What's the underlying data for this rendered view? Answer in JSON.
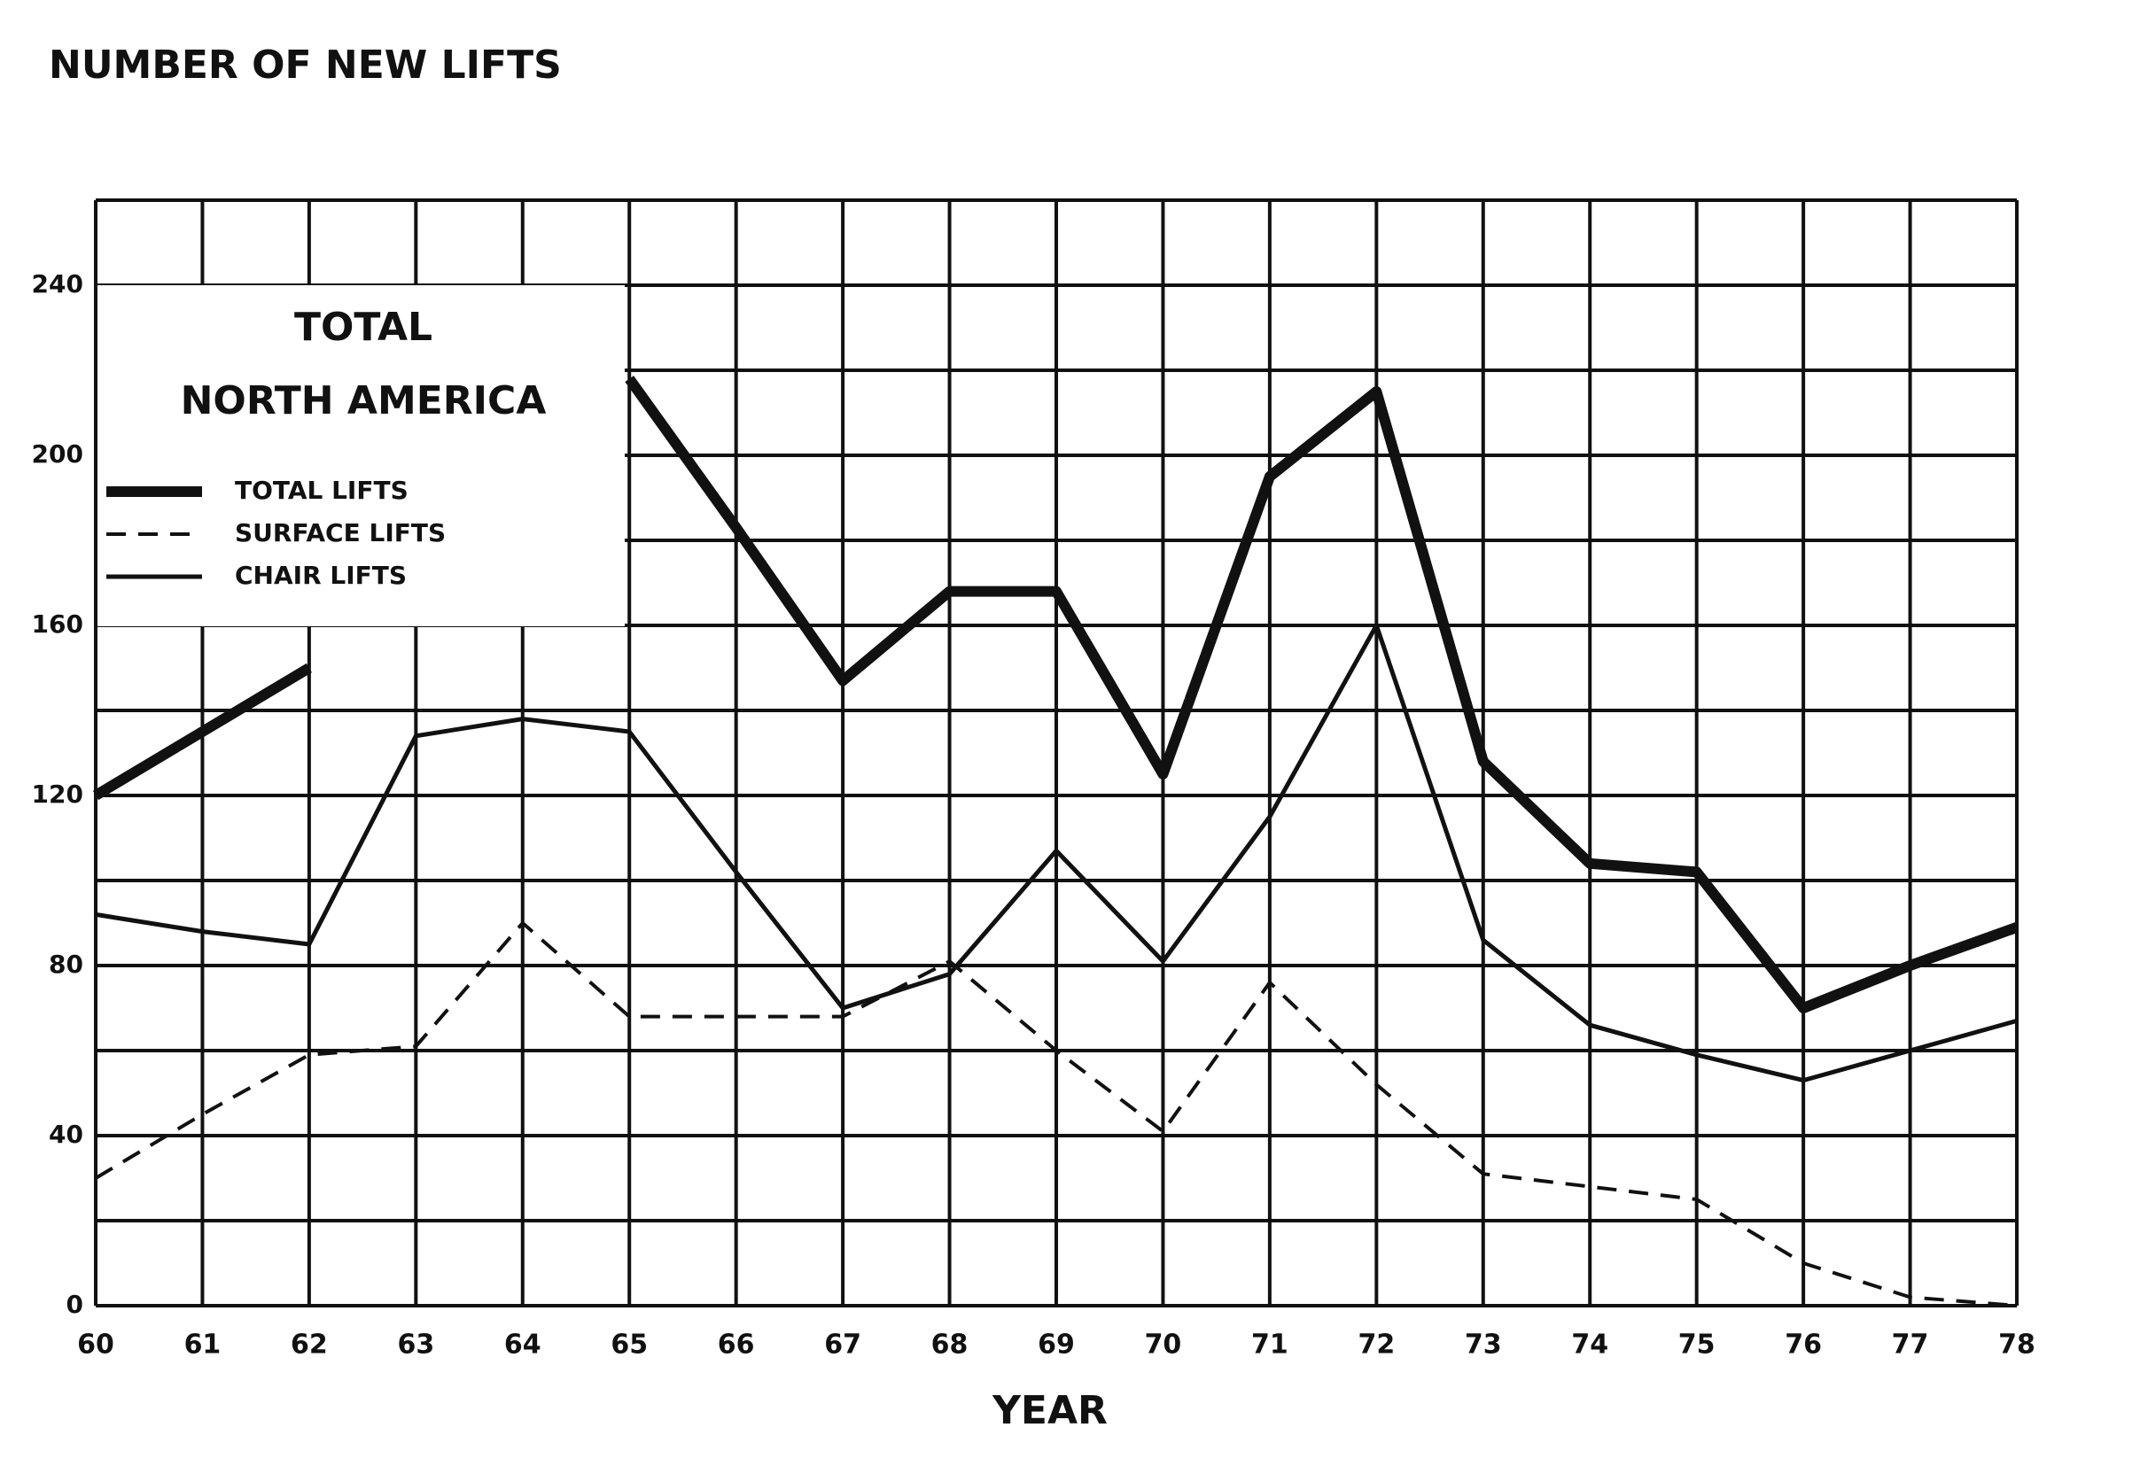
{
  "chart_data": {
    "type": "line",
    "title": "NUMBER OF NEW LIFTS",
    "x_label": "YEAR",
    "annotation": [
      "TOTAL",
      "NORTH AMERICA"
    ],
    "categories": [
      "60",
      "61",
      "62",
      "63",
      "64",
      "65",
      "66",
      "67",
      "68",
      "69",
      "70",
      "71",
      "72",
      "73",
      "74",
      "75",
      "76",
      "77",
      "78"
    ],
    "series": [
      {
        "name": "TOTAL LIFTS",
        "color": "#111111",
        "width": 12,
        "dash": "none",
        "values": [
          120,
          135,
          150,
          null,
          null,
          218,
          183,
          147,
          168,
          168,
          125,
          195,
          215,
          128,
          104,
          102,
          70,
          80,
          89
        ]
      },
      {
        "name": "SURFACE LIFTS",
        "color": "#111111",
        "width": 4,
        "dash": "22 14",
        "values": [
          30,
          45,
          59,
          61,
          90,
          68,
          68,
          68,
          81,
          60,
          41,
          76,
          52,
          31,
          28,
          25,
          10,
          2,
          0
        ]
      },
      {
        "name": "CHAIR LIFTS",
        "color": "#111111",
        "width": 5,
        "dash": "none",
        "values": [
          92,
          88,
          85,
          134,
          138,
          135,
          102,
          70,
          78,
          107,
          81,
          115,
          160,
          86,
          66,
          59,
          53,
          60,
          67
        ]
      }
    ],
    "ylim": [
      0,
      260
    ],
    "yticks": [
      0,
      40,
      80,
      120,
      160,
      200,
      240
    ],
    "grid_yticks": [
      0,
      20,
      40,
      60,
      80,
      100,
      120,
      140,
      160,
      180,
      200,
      220,
      240,
      260
    ],
    "grid": true,
    "legend": "upper left"
  }
}
